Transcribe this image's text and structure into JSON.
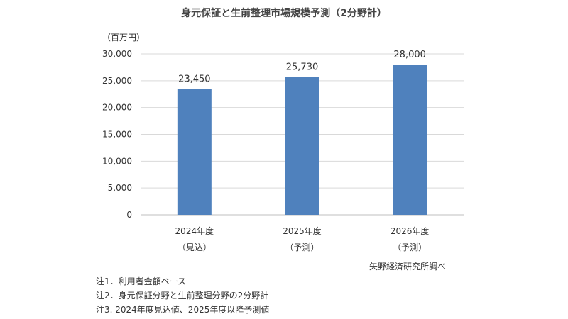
{
  "chart_data": {
    "type": "bar",
    "title": "身元保証と生前整理市場規模予測（2分野計）",
    "unit_label": "（百万円）",
    "categories": [
      {
        "line1": "2024年度",
        "line2": "（見込）"
      },
      {
        "line1": "2025年度",
        "line2": "（予測）"
      },
      {
        "line1": "2026年度",
        "line2": "（予測）"
      }
    ],
    "values": [
      23450,
      25730,
      28000
    ],
    "data_labels": [
      "23,450",
      "25,730",
      "28,000"
    ],
    "ylim": [
      0,
      30000
    ],
    "y_ticks": [
      {
        "value": 0,
        "label": "0"
      },
      {
        "value": 5000,
        "label": "5,000"
      },
      {
        "value": 10000,
        "label": "10,000"
      },
      {
        "value": 15000,
        "label": "15,000"
      },
      {
        "value": 20000,
        "label": "20,000"
      },
      {
        "value": 25000,
        "label": "25,000"
      },
      {
        "value": 30000,
        "label": "30,000"
      }
    ],
    "grid": true,
    "bar_color": "#4f81bd",
    "grid_color": "#d9d9d9"
  },
  "source": "矢野経済研究所調べ",
  "notes": [
    "注1．利用者金額ベース",
    "注2．身元保証分野と生前整理分野の2分野計",
    "注3. 2024年度見込値、2025年度以降予測値"
  ]
}
